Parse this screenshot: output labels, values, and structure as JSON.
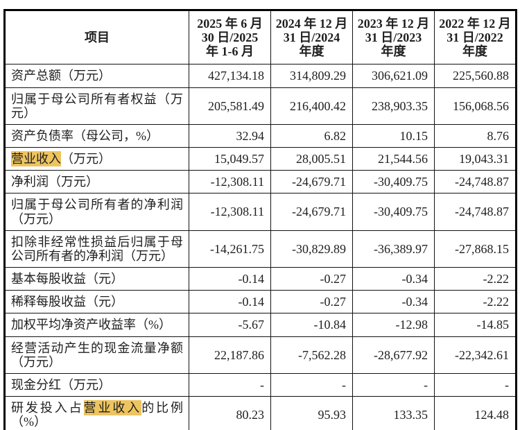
{
  "table": {
    "highlight_color": "#eec45f",
    "header": {
      "item_label": "项目",
      "periods": [
        "2025 年 6 月\n30 日/2025\n年 1-6 月",
        "2024 年 12 月\n31 日/2024\n年度",
        "2023 年 12 月\n31 日/2023\n年度",
        "2022 年 12 月\n31 日/2022\n年度"
      ]
    },
    "rows": [
      {
        "label_pre": "资产总额（万元）",
        "label_hl": "",
        "label_post": "",
        "values": [
          "427,134.18",
          "314,809.29",
          "306,621.09",
          "225,560.88"
        ]
      },
      {
        "label_pre": "归属于母公司所有者权益（万元）",
        "label_hl": "",
        "label_post": "",
        "values": [
          "205,581.49",
          "216,400.42",
          "238,903.35",
          "156,068.56"
        ]
      },
      {
        "label_pre": "资产负债率（母公司，%）",
        "label_hl": "",
        "label_post": "",
        "values": [
          "32.94",
          "6.82",
          "10.15",
          "8.76"
        ]
      },
      {
        "label_pre": "",
        "label_hl": "营业收入",
        "label_post": "（万元）",
        "values": [
          "15,049.57",
          "28,005.51",
          "21,544.56",
          "19,043.31"
        ]
      },
      {
        "label_pre": "净利润（万元）",
        "label_hl": "",
        "label_post": "",
        "values": [
          "-12,308.11",
          "-24,679.71",
          "-30,409.75",
          "-24,748.87"
        ]
      },
      {
        "label_pre": "归属于母公司所有者的净利润（万元）",
        "label_hl": "",
        "label_post": "",
        "values": [
          "-12,308.11",
          "-24,679.71",
          "-30,409.75",
          "-24,748.87"
        ]
      },
      {
        "label_pre": "扣除非经常性损益后归属于母公司所有者的净利润（万元）",
        "label_hl": "",
        "label_post": "",
        "values": [
          "-14,261.75",
          "-30,829.89",
          "-36,389.97",
          "-27,868.15"
        ]
      },
      {
        "label_pre": "基本每股收益（元）",
        "label_hl": "",
        "label_post": "",
        "values": [
          "-0.14",
          "-0.27",
          "-0.34",
          "-2.22"
        ]
      },
      {
        "label_pre": "稀释每股收益（元）",
        "label_hl": "",
        "label_post": "",
        "values": [
          "-0.14",
          "-0.27",
          "-0.34",
          "-2.22"
        ]
      },
      {
        "label_pre": "加权平均净资产收益率（%）",
        "label_hl": "",
        "label_post": "",
        "values": [
          "-5.67",
          "-10.84",
          "-12.98",
          "-14.85"
        ]
      },
      {
        "label_pre": "经营活动产生的现金流量净额（万元）",
        "label_hl": "",
        "label_post": "",
        "values": [
          "22,187.86",
          "-7,562.28",
          "-28,677.92",
          "-22,342.61"
        ]
      },
      {
        "label_pre": "现金分红（万元）",
        "label_hl": "",
        "label_post": "",
        "values": [
          "-",
          "-",
          "-",
          "-"
        ]
      },
      {
        "label_pre": "研发投入占",
        "label_hl": "营业收入",
        "label_post": "的比例（%）",
        "values": [
          "80.23",
          "95.93",
          "133.35",
          "124.48"
        ]
      }
    ]
  }
}
